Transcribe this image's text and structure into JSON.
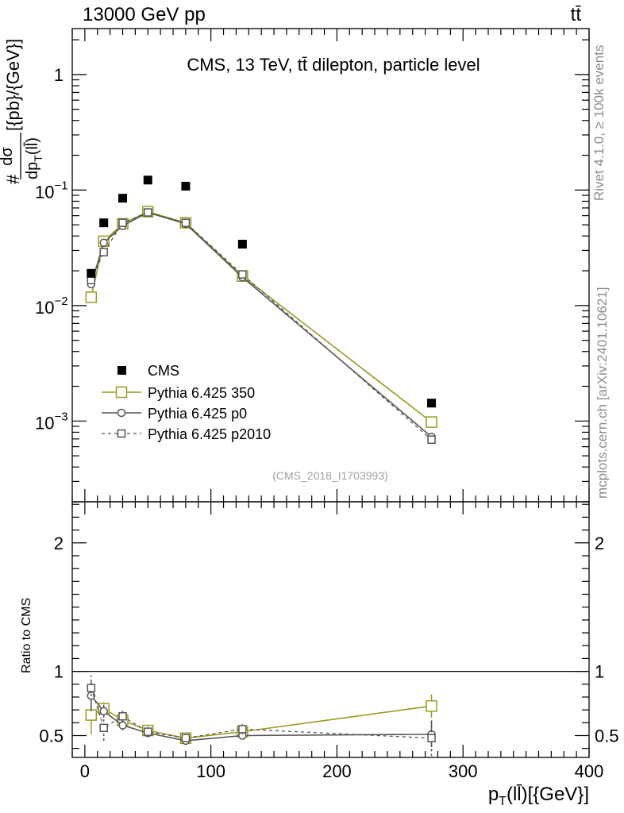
{
  "header": {
    "energy_label": "13000 GeV pp",
    "process_label": "tt̄"
  },
  "side_labels": {
    "rivet": "Rivet 4.1.0, ≥ 100k events",
    "mcplots": "mcplots.cern.ch [arXiv:2401.10621]"
  },
  "chart_data": {
    "type": "scatter",
    "title": "CMS, 13 TeV, tt̄ dilepton, particle level",
    "watermark": "(CMS_2018_I1703993)",
    "xlabel": "p_T(ll̄)[{GeV}]",
    "ylabel": "#dσ/dp_T(ll̄)[{pb}/{GeV}]",
    "ratio_ylabel": "Ratio to CMS",
    "xlim": [
      -10,
      400
    ],
    "ylim_log": [
      0.0002,
      2.5
    ],
    "ratio_ylim": [
      0.33,
      2.32
    ],
    "x_ticks": [
      "0",
      "100",
      "200",
      "300",
      "400"
    ],
    "y_tick_labels": [
      {
        "value": 1,
        "text": "1"
      },
      {
        "value": 0.1,
        "base": "10",
        "exp": "−1"
      },
      {
        "value": 0.01,
        "base": "10",
        "exp": "−2"
      },
      {
        "value": 0.001,
        "base": "10",
        "exp": "−3"
      }
    ],
    "ratio_ticks": [
      "0.5",
      "1",
      "2"
    ],
    "x": [
      5,
      15,
      30,
      50,
      80,
      125,
      275
    ],
    "data": {
      "name": "CMS",
      "values": [
        0.019,
        0.052,
        0.085,
        0.122,
        0.108,
        0.034,
        0.00143
      ]
    },
    "series": [
      {
        "name": "Pythia 6.425 350",
        "color": "#9a9a1f",
        "values": [
          0.0118,
          0.036,
          0.051,
          0.065,
          0.052,
          0.018,
          0.00098
        ],
        "ratio": [
          0.66,
          0.71,
          0.62,
          0.54,
          0.48,
          0.53,
          0.73
        ],
        "ratio_err": [
          0.15,
          0.05,
          0.05,
          0.04,
          0.03,
          0.04,
          0.09
        ]
      },
      {
        "name": "Pythia 6.425 p0",
        "color": "#555555",
        "values": [
          0.0153,
          0.035,
          0.049,
          0.064,
          0.051,
          0.0176,
          0.00073
        ],
        "ratio": [
          0.81,
          0.69,
          0.58,
          0.52,
          0.46,
          0.5,
          0.51
        ],
        "ratio_err": [
          0.12,
          0.05,
          0.04,
          0.03,
          0.03,
          0.03,
          0.1
        ]
      },
      {
        "name": "Pythia 6.425 p2010",
        "color": "#555555",
        "values": [
          0.0166,
          0.029,
          0.052,
          0.064,
          0.052,
          0.0186,
          0.00069
        ],
        "ratio": [
          0.87,
          0.56,
          0.65,
          0.53,
          0.48,
          0.55,
          0.48
        ],
        "ratio_err": [
          0.1,
          0.1,
          0.05,
          0.04,
          0.03,
          0.04,
          0.14
        ]
      }
    ]
  }
}
